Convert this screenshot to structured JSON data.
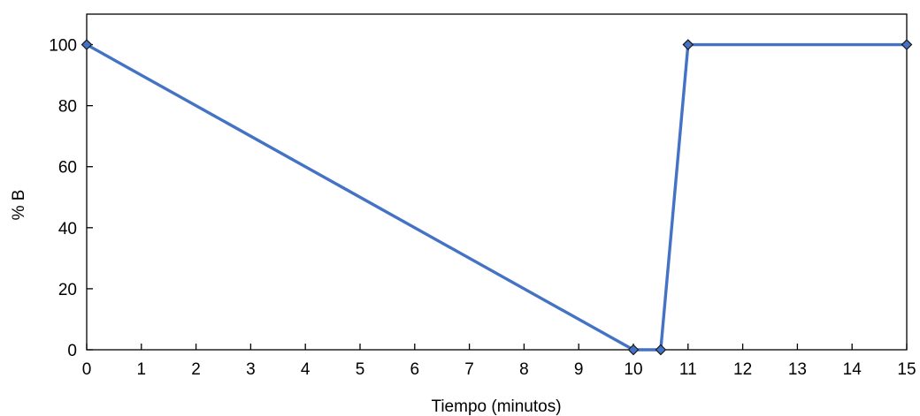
{
  "chart_data": {
    "type": "line",
    "title": "",
    "xlabel": "Tiempo (minutos)",
    "ylabel": "% B",
    "xlim": [
      0,
      15
    ],
    "ylim": [
      0,
      110
    ],
    "x_ticks": [
      "0",
      "1",
      "2",
      "3",
      "4",
      "5",
      "6",
      "7",
      "8",
      "9",
      "10",
      "11",
      "12",
      "13",
      "14",
      "15"
    ],
    "y_ticks": [
      "0",
      "20",
      "40",
      "60",
      "80",
      "100"
    ],
    "grid": false,
    "legend": "none",
    "series": [
      {
        "x": [
          0,
          10,
          10.5,
          11,
          15
        ],
        "y": [
          100,
          0,
          0,
          100,
          100
        ],
        "color": "#4472C4",
        "marker": "diamond"
      }
    ]
  }
}
